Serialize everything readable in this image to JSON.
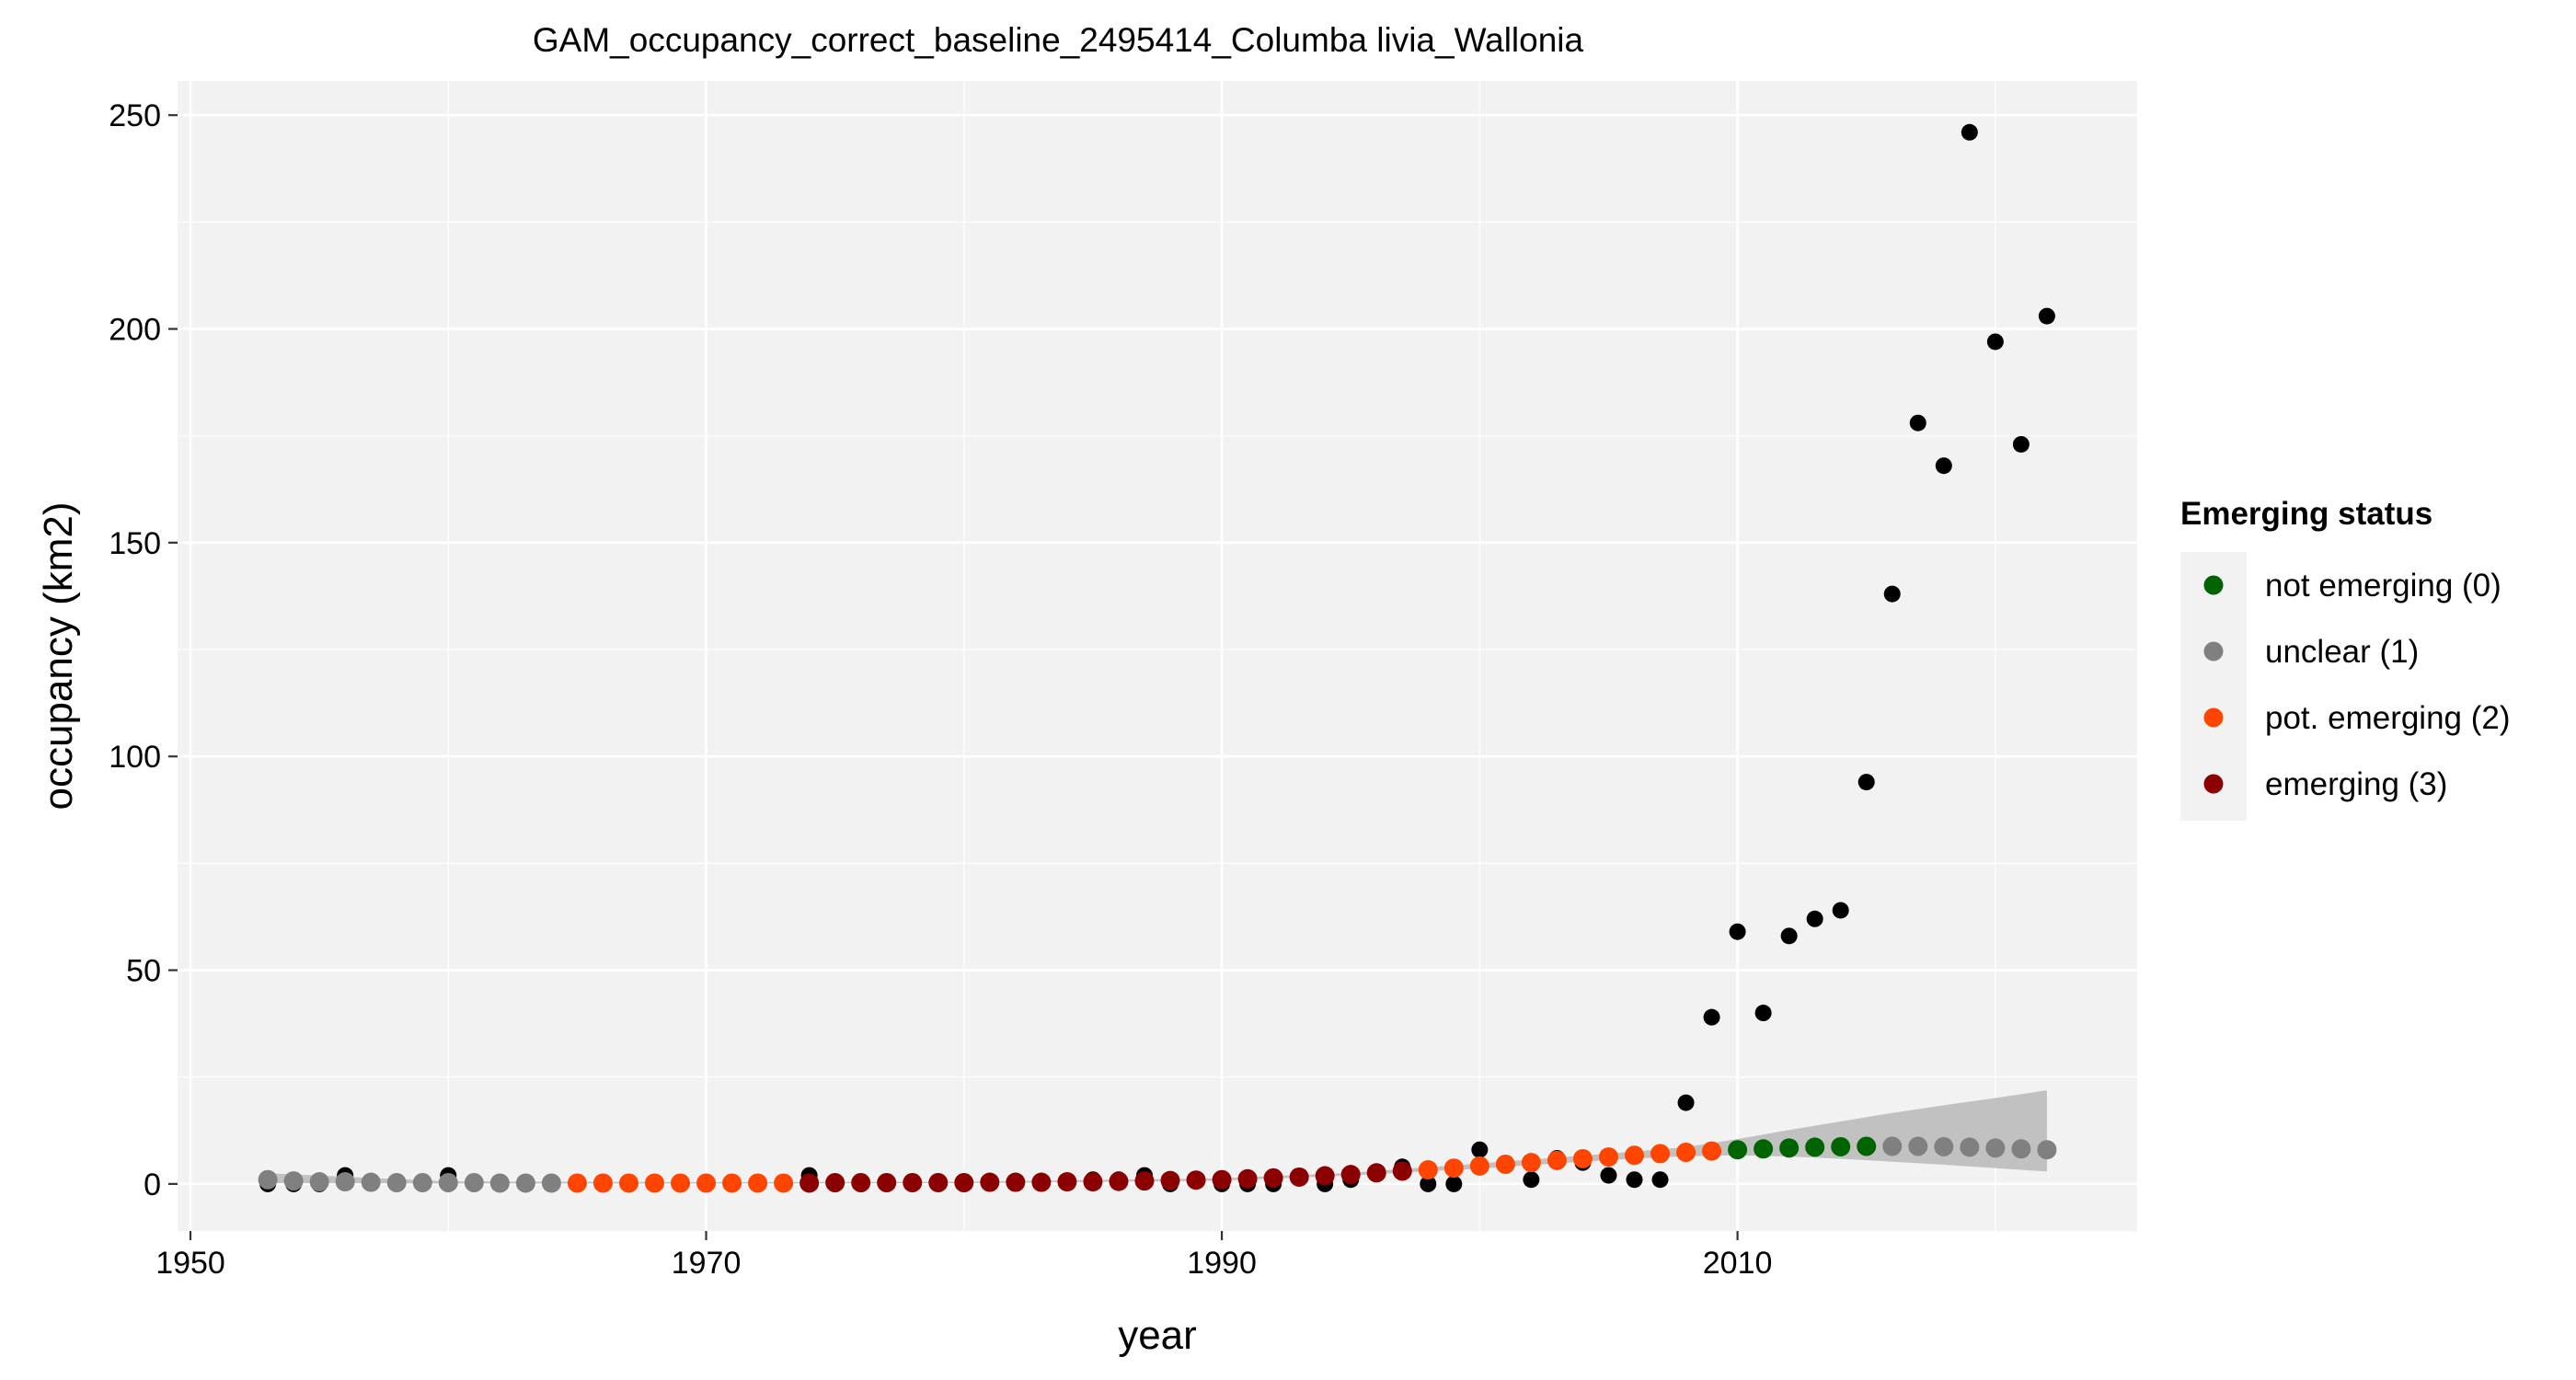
{
  "chart_data": {
    "type": "scatter",
    "title": "GAM_occupancy_correct_baseline_2495414_Columba livia_Wallonia",
    "xlabel": "year",
    "ylabel": "occupancy (km2)",
    "xlim": [
      1949.5,
      2025.5
    ],
    "ylim": [
      -11,
      258
    ],
    "x_ticks": [
      1950,
      1970,
      1990,
      2010
    ],
    "y_ticks": [
      0,
      50,
      100,
      150,
      200,
      250
    ],
    "x_tick_labels": [
      "1950",
      "1970",
      "1990",
      "2010"
    ],
    "y_tick_labels": [
      "0",
      "50",
      "100",
      "150",
      "200",
      "250"
    ],
    "grid": true,
    "legend": {
      "title": "Emerging status",
      "position": "right",
      "entries": [
        {
          "label": "not emerging (0)",
          "color": "#006400"
        },
        {
          "label": "unclear (1)",
          "color": "#808080"
        },
        {
          "label": "pot. emerging (2)",
          "color": "#FF4500"
        },
        {
          "label": "emerging (3)",
          "color": "#8B0000"
        }
      ]
    },
    "colors": {
      "0": "#006400",
      "1": "#808080",
      "2": "#FF4500",
      "3": "#8B0000",
      "observed": "#000000",
      "ribbon": "#BEBEBE",
      "panel_bg": "#F2F2F2",
      "grid": "#FFFFFF"
    },
    "observed": {
      "x": [
        1953,
        1954,
        1955,
        1956,
        1960,
        1974,
        1975,
        1985,
        1986,
        1987,
        1988,
        1990,
        1991,
        1992,
        1994,
        1995,
        1997,
        1998,
        1999,
        2000,
        2002,
        2003,
        2004,
        2005,
        2006,
        2007,
        2008,
        2009,
        2010,
        2011,
        2012,
        2013,
        2014,
        2015,
        2016,
        2017,
        2018,
        2019,
        2020,
        2021,
        2022
      ],
      "y": [
        0,
        0,
        0,
        2,
        2,
        2,
        0,
        1,
        1,
        2,
        0,
        0,
        0,
        0,
        0,
        1,
        4,
        0,
        0,
        8,
        1,
        6,
        5,
        2,
        1,
        1,
        19,
        39,
        59,
        40,
        58,
        62,
        64,
        94,
        138,
        178,
        168,
        246,
        197,
        173,
        203
      ]
    },
    "fitted": {
      "x": [
        1953,
        1954,
        1955,
        1956,
        1957,
        1958,
        1959,
        1960,
        1961,
        1962,
        1963,
        1964,
        1965,
        1966,
        1967,
        1968,
        1969,
        1970,
        1971,
        1972,
        1973,
        1974,
        1975,
        1976,
        1977,
        1978,
        1979,
        1980,
        1981,
        1982,
        1983,
        1984,
        1985,
        1986,
        1987,
        1988,
        1989,
        1990,
        1991,
        1992,
        1993,
        1994,
        1995,
        1996,
        1997,
        1998,
        1999,
        2000,
        2001,
        2002,
        2003,
        2004,
        2005,
        2006,
        2007,
        2008,
        2009,
        2010,
        2011,
        2012,
        2013,
        2014,
        2015,
        2016,
        2017,
        2018,
        2019,
        2020,
        2021,
        2022
      ],
      "y": [
        1.0,
        0.7,
        0.5,
        0.5,
        0.4,
        0.3,
        0.3,
        0.3,
        0.3,
        0.2,
        0.2,
        0.2,
        0.2,
        0.2,
        0.2,
        0.2,
        0.2,
        0.2,
        0.2,
        0.2,
        0.2,
        0.2,
        0.3,
        0.3,
        0.3,
        0.3,
        0.3,
        0.3,
        0.4,
        0.4,
        0.4,
        0.5,
        0.5,
        0.6,
        0.7,
        0.8,
        0.9,
        1.0,
        1.2,
        1.4,
        1.6,
        1.9,
        2.2,
        2.6,
        3.0,
        3.3,
        3.7,
        4.2,
        4.6,
        5.0,
        5.5,
        5.9,
        6.3,
        6.7,
        7.1,
        7.4,
        7.7,
        8.0,
        8.2,
        8.4,
        8.6,
        8.7,
        8.8,
        8.8,
        8.8,
        8.7,
        8.6,
        8.4,
        8.2,
        8.0
      ],
      "status": [
        1,
        1,
        1,
        1,
        1,
        1,
        1,
        1,
        1,
        1,
        1,
        1,
        2,
        2,
        2,
        2,
        2,
        2,
        2,
        2,
        2,
        3,
        3,
        3,
        3,
        3,
        3,
        3,
        3,
        3,
        3,
        3,
        3,
        3,
        3,
        3,
        3,
        3,
        3,
        3,
        3,
        3,
        3,
        3,
        3,
        2,
        2,
        2,
        2,
        2,
        2,
        2,
        2,
        2,
        2,
        2,
        2,
        0,
        0,
        0,
        0,
        0,
        0,
        1,
        1,
        1,
        1,
        1,
        1,
        1
      ]
    },
    "ribbon": {
      "x": [
        1953,
        1960,
        1970,
        1980,
        1990,
        1995,
        2000,
        2005,
        2008,
        2010,
        2012,
        2014,
        2016,
        2018,
        2020,
        2022
      ],
      "lower": [
        0.2,
        0.1,
        0.1,
        0.2,
        0.8,
        2.0,
        3.6,
        5.6,
        6.5,
        6.7,
        6.4,
        5.9,
        5.2,
        4.5,
        3.7,
        2.9
      ],
      "upper": [
        2.5,
        0.6,
        0.4,
        0.5,
        1.3,
        2.6,
        4.8,
        7.1,
        8.6,
        10.5,
        12.6,
        14.6,
        16.6,
        18.4,
        20.1,
        21.9
      ]
    }
  }
}
